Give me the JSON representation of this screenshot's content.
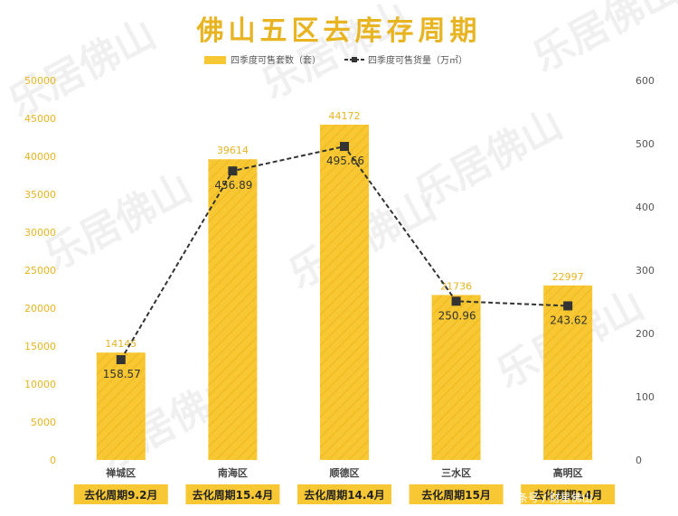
{
  "title": "佛山五区去库存周期",
  "watermark_text": "乐居佛山",
  "footer_watermark": "头条号 / 财星佛山",
  "colors": {
    "bar": "#f7c833",
    "accent": "#e8b422",
    "line": "#333333",
    "period_bg": "#f7c833"
  },
  "chart_data": {
    "type": "bar",
    "categories": [
      "禅城区",
      "南海区",
      "顺德区",
      "三水区",
      "高明区"
    ],
    "series": [
      {
        "name": "四季度可售套数（套）",
        "type": "bar",
        "axis": "left",
        "values": [
          14145,
          39614,
          44172,
          21736,
          22997
        ]
      },
      {
        "name": "四季度可售货量（万㎡）",
        "type": "line",
        "axis": "right",
        "values": [
          158.57,
          456.89,
          495.66,
          250.96,
          243.62
        ]
      }
    ],
    "y_left": {
      "ylim": [
        0,
        50000
      ],
      "ticks": [
        0,
        5000,
        10000,
        15000,
        20000,
        25000,
        30000,
        35000,
        40000,
        45000,
        50000
      ]
    },
    "y_right": {
      "ylim": [
        0,
        600
      ],
      "ticks": [
        0,
        100,
        200,
        300,
        400,
        500,
        600
      ]
    },
    "periods": [
      "去化周期9.2月",
      "去化周期15.4月",
      "去化周期14.4月",
      "去化周期15月",
      "去化周期14月"
    ],
    "legend": "top-center",
    "grid": false
  }
}
